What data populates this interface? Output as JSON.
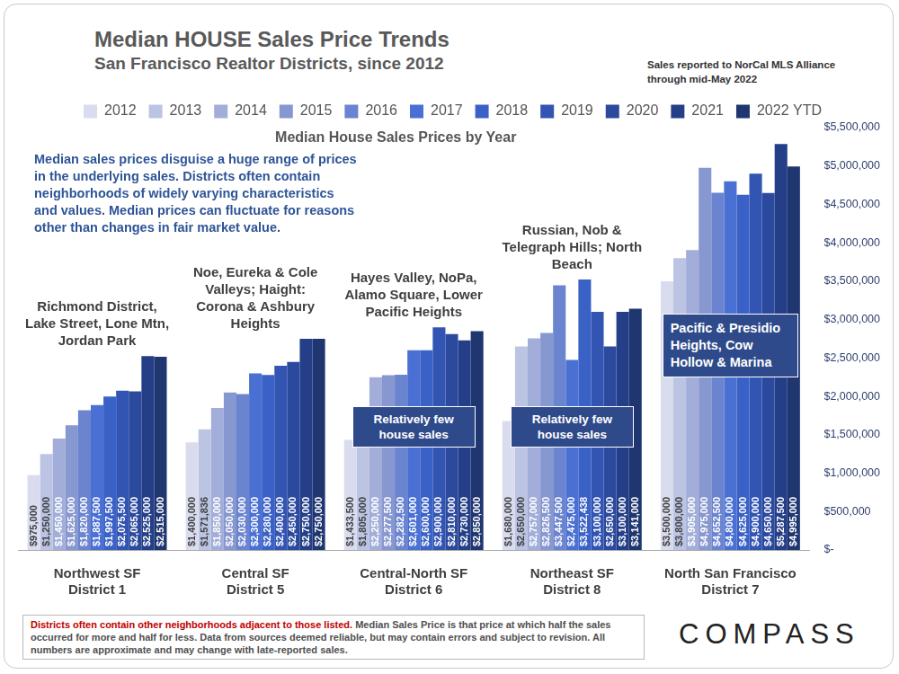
{
  "chart_data": {
    "type": "bar",
    "title": "Median HOUSE Sales Price Trends",
    "subtitle": "San Francisco Realtor Districts, since 2012",
    "source_note": "Sales reported to NorCal MLS Alliance through mid-May 2022",
    "plot_title": "Median House Sales Prices by Year",
    "annotation": "Median sales prices disguise a huge range of prices in the underlying sales. Districts often contain neighborhoods of widely varying characteristics and values. Median prices can fluctuate for reasons other than changes in fair market value.",
    "categories": [
      [
        "Northwest SF",
        "District 1"
      ],
      [
        "Central SF",
        "District 5"
      ],
      [
        "Central-North SF",
        "District 6"
      ],
      [
        "Northeast SF",
        "District 8"
      ],
      [
        "North San Francisco",
        "District 7"
      ]
    ],
    "category_areas": [
      "Richmond District, Lake Street, Lone Mtn, Jordan Park",
      "Noe, Eureka & Cole Valleys; Haight: Corona & Ashbury Heights",
      "Hayes Valley, NoPa, Alamo Square, Lower Pacific Heights",
      "Russian, Nob & Telegraph Hills; North Beach",
      "Pacific & Presidio Heights, Cow Hollow & Marina"
    ],
    "category_notes": [
      null,
      null,
      "Relatively few house sales",
      "Relatively few house sales",
      null
    ],
    "series": [
      {
        "name": "2012",
        "color": "#d9dcee",
        "values": [
          975000,
          1400000,
          1433500,
          1680000,
          3500000
        ],
        "value_labels": [
          "$975,000",
          "$1,400,000",
          "$1,433,500",
          "$1,680,000",
          "$3,500,000"
        ]
      },
      {
        "name": "2013",
        "color": "#bcc4e4",
        "values": [
          1250000,
          1571836,
          1805000,
          2650000,
          3800000
        ],
        "value_labels": [
          "$1,250,000",
          "$1,571,836",
          "$1,805,000",
          "$2,650,000",
          "$3,800,000"
        ]
      },
      {
        "name": "2014",
        "color": "#a2aed9",
        "values": [
          1450000,
          1850000,
          2250000,
          2757000,
          3905000
        ],
        "value_labels": [
          "$1,450,000",
          "$1,850,000",
          "$2,250,000",
          "$2,757,000",
          "$3,905,000"
        ]
      },
      {
        "name": "2015",
        "color": "#8797cf",
        "values": [
          1625000,
          2050000,
          2277500,
          2826500,
          4975000
        ],
        "value_labels": [
          "$1,625,000",
          "$2,050,000",
          "$2,277,500",
          "$2,826,500",
          "$4,975,000"
        ]
      },
      {
        "name": "2016",
        "color": "#6b84cf",
        "values": [
          1820000,
          2030000,
          2282500,
          3447500,
          4652500
        ],
        "value_labels": [
          "$1,820,000",
          "$2,030,000",
          "$2,282,500",
          "$3,447,500",
          "$4,652,500"
        ]
      },
      {
        "name": "2017",
        "color": "#4a70d4",
        "values": [
          1887500,
          2300000,
          2601000,
          2475000,
          4800000
        ],
        "value_labels": [
          "$1,887,500",
          "$2,300,000",
          "$2,601,000",
          "$2,475,000",
          "$4,800,000"
        ]
      },
      {
        "name": "2018",
        "color": "#3a61c6",
        "values": [
          1997500,
          2280000,
          2600000,
          3522438,
          4625000
        ],
        "value_labels": [
          "$1,997,500",
          "$2,280,000",
          "$2,600,000",
          "$3,522,438",
          "$4,625,000"
        ]
      },
      {
        "name": "2019",
        "color": "#3254b3",
        "values": [
          2075500,
          2400000,
          2900000,
          3100000,
          4900000
        ],
        "value_labels": [
          "$2,075,500",
          "$2,400,000",
          "$2,900,000",
          "$3,100,000",
          "$4,900,000"
        ]
      },
      {
        "name": "2020",
        "color": "#2b499d",
        "values": [
          2065000,
          2450000,
          2810000,
          2650000,
          4650000
        ],
        "value_labels": [
          "$2,065,000",
          "$2,450,000",
          "$2,810,000",
          "$2,650,000",
          "$4,650,000"
        ]
      },
      {
        "name": "2021",
        "color": "#243f88",
        "values": [
          2525000,
          2750000,
          2730000,
          3100000,
          5287500
        ],
        "value_labels": [
          "$2,525,000",
          "$2,750,000",
          "$2,730,000",
          "$3,100,000",
          "$5,287,500"
        ]
      },
      {
        "name": "2022 YTD",
        "color": "#1f3670",
        "values": [
          2515000,
          2750000,
          2850000,
          3141000,
          4995000
        ],
        "value_labels": [
          "$2,515,000",
          "$2,750,000",
          "$2,850,000",
          "$3,141,000",
          "$4,995,000"
        ]
      }
    ],
    "ylim": [
      0,
      5500000
    ],
    "yticks": [
      {
        "value": 0,
        "label": "$-"
      },
      {
        "value": 500000,
        "label": "$500,000"
      },
      {
        "value": 1000000,
        "label": "$1,000,000"
      },
      {
        "value": 1500000,
        "label": "$1,500,000"
      },
      {
        "value": 2000000,
        "label": "$2,000,000"
      },
      {
        "value": 2500000,
        "label": "$2,500,000"
      },
      {
        "value": 3000000,
        "label": "$3,000,000"
      },
      {
        "value": 3500000,
        "label": "$3,500,000"
      },
      {
        "value": 4000000,
        "label": "$4,000,000"
      },
      {
        "value": 4500000,
        "label": "$4,500,000"
      },
      {
        "value": 5000000,
        "label": "$5,000,000"
      },
      {
        "value": 5500000,
        "label": "$5,500,000"
      }
    ],
    "grid": false,
    "legend": "top",
    "data_labels": true,
    "footnote_highlight": "Districts often contain other neighborhoods adjacent to those listed.",
    "footnote": "Median Sales Price is that price at which half the sales occurred for more and half for less. Data from sources deemed reliable, but may contain errors and subject to revision. All numbers are approximate and may change with late-reported sales.",
    "logo": "COMPASS"
  }
}
